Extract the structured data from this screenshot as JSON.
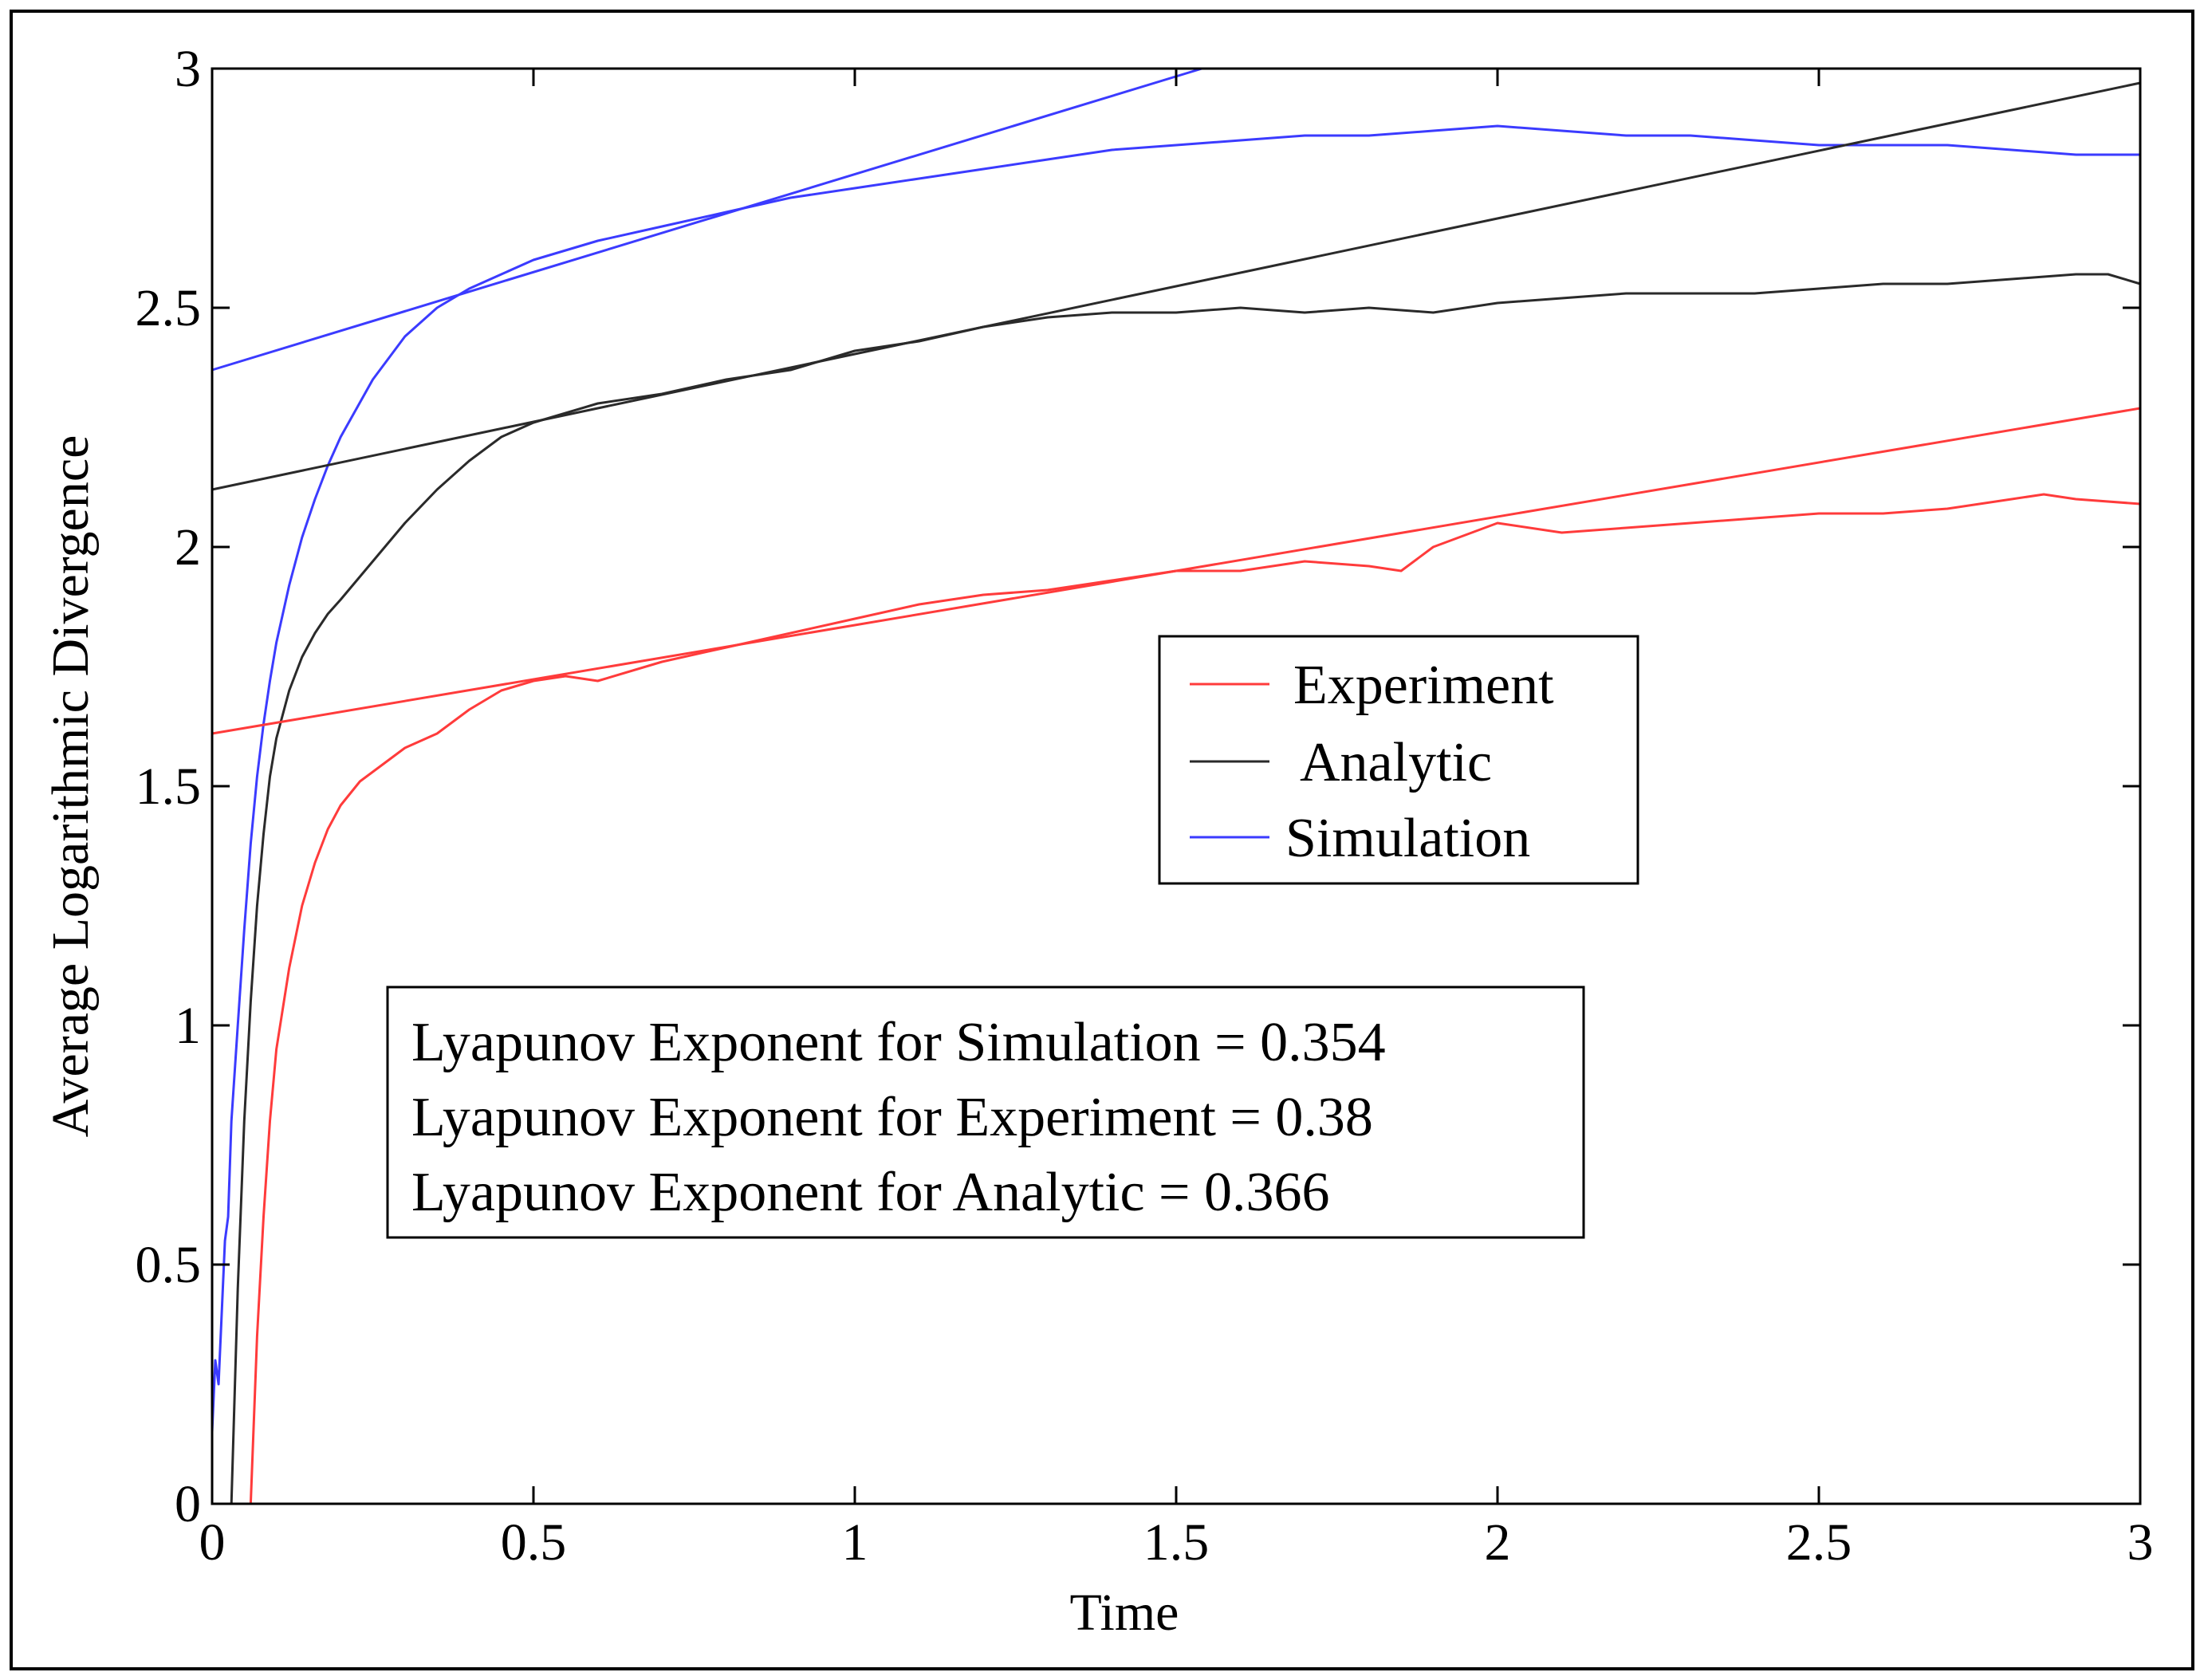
{
  "chart_data": {
    "type": "line",
    "title": "",
    "xlabel": "Time",
    "ylabel": "Average Logarithmic Divergence",
    "xlim": [
      0,
      3
    ],
    "ylim": [
      0,
      3
    ],
    "xticks": [
      "0",
      "0.5",
      "1",
      "1.5",
      "2",
      "2.5",
      "3"
    ],
    "yticks": [
      "0",
      "0.5",
      "1",
      "1.5",
      "2",
      "2.5",
      "3"
    ],
    "grid": false,
    "legend_position": "center-right",
    "series": [
      {
        "name": "Experiment",
        "color": "#ff3b3b",
        "x": [
          0.06,
          0.07,
          0.08,
          0.09,
          0.1,
          0.12,
          0.14,
          0.16,
          0.18,
          0.2,
          0.23,
          0.26,
          0.3,
          0.35,
          0.4,
          0.45,
          0.5,
          0.55,
          0.6,
          0.7,
          0.8,
          0.9,
          1.0,
          1.1,
          1.2,
          1.3,
          1.4,
          1.5,
          1.6,
          1.7,
          1.8,
          1.85,
          1.9,
          2.0,
          2.1,
          2.2,
          2.3,
          2.4,
          2.5,
          2.6,
          2.7,
          2.8,
          2.85,
          2.9,
          3.0
        ],
        "y": [
          0.0,
          0.35,
          0.6,
          0.8,
          0.95,
          1.12,
          1.25,
          1.34,
          1.41,
          1.46,
          1.51,
          1.54,
          1.58,
          1.61,
          1.66,
          1.7,
          1.72,
          1.73,
          1.72,
          1.76,
          1.79,
          1.82,
          1.85,
          1.88,
          1.9,
          1.91,
          1.93,
          1.95,
          1.95,
          1.97,
          1.96,
          1.95,
          2.0,
          2.05,
          2.03,
          2.04,
          2.05,
          2.06,
          2.07,
          2.07,
          2.08,
          2.1,
          2.11,
          2.1,
          2.09
        ]
      },
      {
        "name": "Analytic",
        "color": "#2a2a2a",
        "x": [
          0.03,
          0.04,
          0.05,
          0.06,
          0.07,
          0.08,
          0.09,
          0.1,
          0.12,
          0.14,
          0.16,
          0.18,
          0.2,
          0.25,
          0.3,
          0.35,
          0.4,
          0.45,
          0.5,
          0.6,
          0.7,
          0.8,
          0.9,
          1.0,
          1.1,
          1.2,
          1.3,
          1.4,
          1.5,
          1.6,
          1.7,
          1.8,
          1.9,
          2.0,
          2.1,
          2.2,
          2.3,
          2.4,
          2.5,
          2.6,
          2.7,
          2.8,
          2.9,
          2.95,
          3.0
        ],
        "y": [
          0.0,
          0.45,
          0.8,
          1.05,
          1.25,
          1.4,
          1.52,
          1.6,
          1.7,
          1.77,
          1.82,
          1.86,
          1.89,
          1.97,
          2.05,
          2.12,
          2.18,
          2.23,
          2.26,
          2.3,
          2.32,
          2.35,
          2.37,
          2.41,
          2.43,
          2.46,
          2.48,
          2.49,
          2.49,
          2.5,
          2.49,
          2.5,
          2.49,
          2.51,
          2.52,
          2.53,
          2.53,
          2.53,
          2.54,
          2.55,
          2.55,
          2.56,
          2.57,
          2.57,
          2.55
        ]
      },
      {
        "name": "Simulation",
        "color": "#3b3bff",
        "x": [
          0.0,
          0.005,
          0.01,
          0.015,
          0.02,
          0.025,
          0.03,
          0.04,
          0.05,
          0.06,
          0.07,
          0.08,
          0.09,
          0.1,
          0.12,
          0.14,
          0.16,
          0.18,
          0.2,
          0.25,
          0.3,
          0.35,
          0.4,
          0.45,
          0.5,
          0.55,
          0.6,
          0.7,
          0.8,
          0.9,
          1.0,
          1.1,
          1.2,
          1.3,
          1.4,
          1.5,
          1.6,
          1.7,
          1.8,
          1.9,
          2.0,
          2.1,
          2.2,
          2.3,
          2.4,
          2.5,
          2.6,
          2.7,
          2.8,
          2.9,
          3.0
        ],
        "y": [
          0.15,
          0.3,
          0.25,
          0.4,
          0.55,
          0.6,
          0.8,
          1.0,
          1.2,
          1.38,
          1.52,
          1.63,
          1.72,
          1.8,
          1.92,
          2.02,
          2.1,
          2.17,
          2.23,
          2.35,
          2.44,
          2.5,
          2.54,
          2.57,
          2.6,
          2.62,
          2.64,
          2.67,
          2.7,
          2.73,
          2.75,
          2.77,
          2.79,
          2.81,
          2.83,
          2.84,
          2.85,
          2.86,
          2.86,
          2.87,
          2.88,
          2.87,
          2.86,
          2.86,
          2.85,
          2.84,
          2.84,
          2.84,
          2.83,
          2.82,
          2.82
        ]
      }
    ],
    "fit_lines": [
      {
        "series": "Experiment",
        "color": "#ff3b3b",
        "x": [
          0,
          3
        ],
        "y": [
          1.61,
          2.29
        ]
      },
      {
        "series": "Analytic",
        "color": "#2a2a2a",
        "x": [
          0,
          3
        ],
        "y": [
          2.12,
          2.97
        ]
      },
      {
        "series": "Simulation",
        "color": "#3b3bff",
        "x": [
          0,
          1.54
        ],
        "y": [
          2.37,
          3.0
        ]
      }
    ],
    "legend": [
      {
        "label": "Experiment",
        "color": "#ff3b3b"
      },
      {
        "label": "Analytic",
        "color": "#2a2a2a"
      },
      {
        "label": "Simulation",
        "color": "#3b3bff"
      }
    ],
    "annotations": [
      "Lyapunov Exponent for Simulation = 0.354",
      "Lyapunov Exponent for Experiment = 0.38",
      "Lyapunov Exponent for Analytic = 0.366"
    ]
  }
}
